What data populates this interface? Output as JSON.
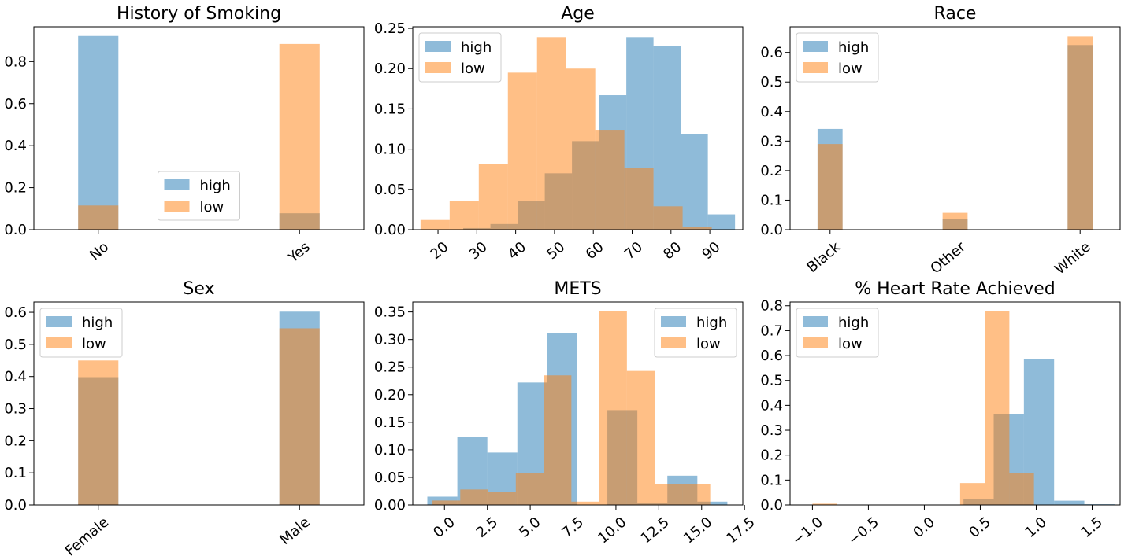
{
  "colors": {
    "high": "#1f77b4",
    "low": "#ff7f0e",
    "alpha": 0.5
  },
  "chart_data": [
    {
      "type": "bar",
      "title": "History of Smoking",
      "legend_position": "center",
      "categories": [
        "No",
        "Yes"
      ],
      "xlim": [
        -0.32,
        1.32
      ],
      "ylim": [
        0,
        0.966
      ],
      "bar_width": 0.2,
      "series": [
        {
          "name": "high",
          "x": [
            0,
            1
          ],
          "values": [
            0.922,
            0.078
          ]
        },
        {
          "name": "low",
          "x": [
            0,
            1
          ],
          "values": [
            0.115,
            0.884
          ]
        }
      ],
      "xticks": [
        0,
        1
      ],
      "xtick_labels": [
        "No",
        "Yes"
      ],
      "xtick_rotation": -40,
      "yticks": [
        0,
        0.2,
        0.4,
        0.6,
        0.8
      ],
      "ytick_labels": [
        "0.0",
        "0.2",
        "0.4",
        "0.6",
        "0.8"
      ]
    },
    {
      "type": "bar",
      "title": "Age",
      "legend_position": "upper left",
      "xlim": [
        13.5,
        98.5
      ],
      "ylim": [
        0,
        0.252
      ],
      "series": [
        {
          "name": "high",
          "edges": [
            26.5,
            33.5,
            40.5,
            47.5,
            54.5,
            61.5,
            68.5,
            75.5,
            82.5,
            89.5,
            96.5
          ],
          "values": [
            0.002,
            0.007,
            0.036,
            0.07,
            0.11,
            0.167,
            0.239,
            0.228,
            0.119,
            0.019
          ]
        },
        {
          "name": "low",
          "edges": [
            15.5,
            23.0,
            30.5,
            38.0,
            45.5,
            53.0,
            60.5,
            68.0,
            75.5,
            83.0,
            90.5
          ],
          "values": [
            0.012,
            0.036,
            0.082,
            0.195,
            0.239,
            0.2,
            0.124,
            0.077,
            0.029,
            0.003
          ]
        }
      ],
      "xticks": [
        20,
        30,
        40,
        50,
        60,
        70,
        80,
        90
      ],
      "xtick_labels": [
        "20",
        "30",
        "40",
        "50",
        "60",
        "70",
        "80",
        "90"
      ],
      "xtick_rotation": -40,
      "yticks": [
        0,
        0.05,
        0.1,
        0.15,
        0.2,
        0.25
      ],
      "ytick_labels": [
        "0.00",
        "0.05",
        "0.10",
        "0.15",
        "0.20",
        "0.25"
      ]
    },
    {
      "type": "bar",
      "title": "Race",
      "legend_position": "upper left",
      "categories": [
        "Black",
        "Other",
        "White"
      ],
      "xlim": [
        -0.32,
        2.32
      ],
      "ylim": [
        0,
        0.687
      ],
      "bar_width": 0.2,
      "series": [
        {
          "name": "high",
          "x": [
            0,
            1,
            2
          ],
          "values": [
            0.341,
            0.035,
            0.625
          ]
        },
        {
          "name": "low",
          "x": [
            0,
            1,
            2
          ],
          "values": [
            0.29,
            0.057,
            0.654
          ]
        }
      ],
      "xticks": [
        0,
        1,
        2
      ],
      "xtick_labels": [
        "Black",
        "Other",
        "White"
      ],
      "xtick_rotation": -40,
      "yticks": [
        0,
        0.1,
        0.2,
        0.3,
        0.4,
        0.5,
        0.6
      ],
      "ytick_labels": [
        "0.0",
        "0.1",
        "0.2",
        "0.3",
        "0.4",
        "0.5",
        "0.6"
      ]
    },
    {
      "type": "bar",
      "title": "Sex",
      "legend_position": "upper left",
      "categories": [
        "Female",
        "Male"
      ],
      "xlim": [
        -0.32,
        1.32
      ],
      "ylim": [
        0,
        0.632
      ],
      "bar_width": 0.2,
      "series": [
        {
          "name": "high",
          "x": [
            0,
            1
          ],
          "values": [
            0.398,
            0.602
          ]
        },
        {
          "name": "low",
          "x": [
            0,
            1
          ],
          "values": [
            0.45,
            0.55
          ]
        }
      ],
      "xticks": [
        0,
        1
      ],
      "xtick_labels": [
        "Female",
        "Male"
      ],
      "xtick_rotation": -40,
      "yticks": [
        0,
        0.1,
        0.2,
        0.3,
        0.4,
        0.5,
        0.6
      ],
      "ytick_labels": [
        "0.0",
        "0.1",
        "0.2",
        "0.3",
        "0.4",
        "0.5",
        "0.6"
      ]
    },
    {
      "type": "bar",
      "title": "METS",
      "legend_position": "upper right",
      "xlim": [
        -1.85,
        17.4
      ],
      "ylim": [
        0,
        0.368
      ],
      "series": [
        {
          "name": "high",
          "edges": [
            -1.0,
            0.75,
            2.5,
            4.25,
            6.0,
            7.75,
            9.5,
            11.25,
            13.0,
            14.75,
            16.5
          ],
          "values": [
            0.015,
            0.123,
            0.095,
            0.222,
            0.311,
            0.0,
            0.172,
            0.003,
            0.053,
            0.006
          ]
        },
        {
          "name": "low",
          "edges": [
            -0.7,
            0.92,
            2.54,
            4.16,
            5.78,
            7.4,
            9.02,
            10.64,
            12.26,
            13.88,
            15.5
          ],
          "values": [
            0.008,
            0.028,
            0.024,
            0.058,
            0.235,
            0.006,
            0.352,
            0.243,
            0.038,
            0.038
          ]
        }
      ],
      "xticks": [
        0,
        2.5,
        5,
        7.5,
        10,
        12.5,
        15,
        17.5
      ],
      "xtick_labels": [
        "0.0",
        "2.5",
        "5.0",
        "7.5",
        "10.0",
        "12.5",
        "15.0",
        "17.5"
      ],
      "xtick_rotation": -40,
      "yticks": [
        0,
        0.05,
        0.1,
        0.15,
        0.2,
        0.25,
        0.3,
        0.35
      ],
      "ytick_labels": [
        "0.00",
        "0.05",
        "0.10",
        "0.15",
        "0.20",
        "0.25",
        "0.30",
        "0.35"
      ]
    },
    {
      "type": "bar",
      "title": "% Heart Rate Achieved",
      "legend_position": "upper left",
      "xlim": [
        -1.2,
        1.75
      ],
      "ylim": [
        0,
        0.815
      ],
      "series": [
        {
          "name": "high",
          "edges": [
            -1.0,
            -0.73,
            -0.46,
            -0.19,
            0.08,
            0.35,
            0.62,
            0.89,
            1.16,
            1.43,
            1.7
          ],
          "values": [
            0.0,
            0.0,
            0.0,
            0.0,
            0.0,
            0.022,
            0.365,
            0.586,
            0.017,
            0.003
          ]
        },
        {
          "name": "low",
          "edges": [
            -1.0,
            -0.78,
            -0.56,
            -0.34,
            -0.12,
            0.1,
            0.32,
            0.54,
            0.76,
            0.98,
            1.2
          ],
          "values": [
            0.005,
            0.0,
            0.0,
            0.0,
            0.0,
            0.0,
            0.088,
            0.778,
            0.127,
            0.0
          ]
        }
      ],
      "xticks": [
        -1.0,
        -0.5,
        0,
        0.5,
        1.0,
        1.5
      ],
      "xtick_labels": [
        "−1.0",
        "−0.5",
        "0.0",
        "0.5",
        "1.0",
        "1.5"
      ],
      "xtick_rotation": -40,
      "yticks": [
        0,
        0.1,
        0.2,
        0.3,
        0.4,
        0.5,
        0.6,
        0.7,
        0.8
      ],
      "ytick_labels": [
        "0.0",
        "0.1",
        "0.2",
        "0.3",
        "0.4",
        "0.5",
        "0.6",
        "0.7",
        "0.8"
      ]
    }
  ]
}
